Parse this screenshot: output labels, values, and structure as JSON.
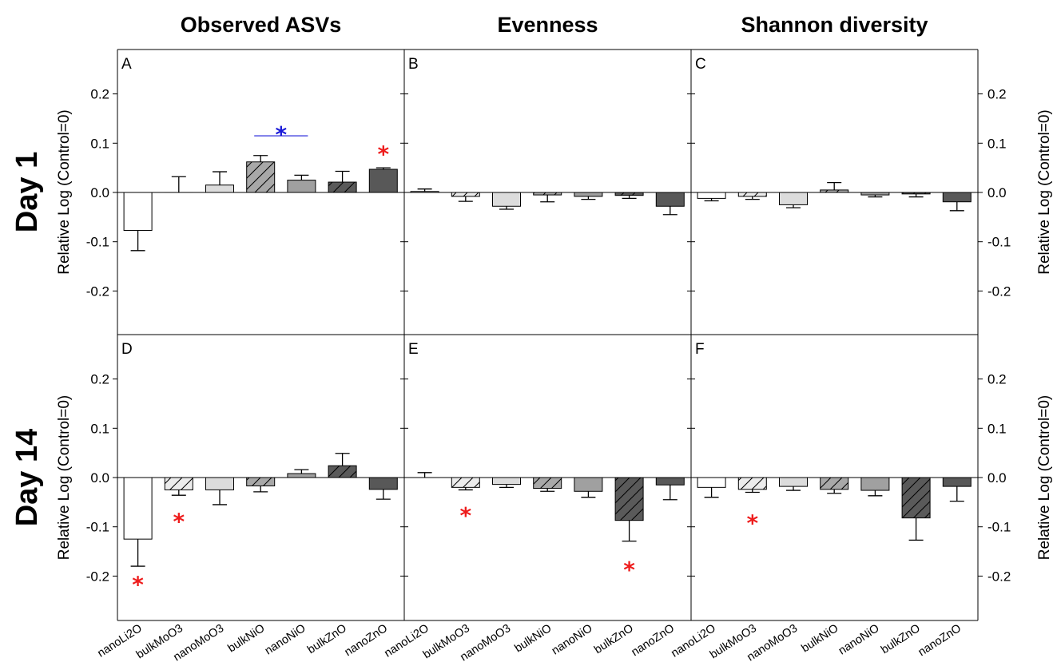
{
  "chart_data": {
    "type": "bar",
    "column_titles": [
      "Observed ASVs",
      "Evenness",
      "Shannon diversity"
    ],
    "row_titles": [
      "Day 1",
      "Day 14"
    ],
    "ylabel": "Relative Log (Control=0)",
    "ylim": [
      -0.29,
      0.29
    ],
    "yticks": [
      0.2,
      0.1,
      0.0,
      -0.1,
      -0.2
    ],
    "ytick_labels": [
      "0.2",
      "0.1",
      "0.0",
      "-0.1",
      "-0.2"
    ],
    "categories": [
      "nanoLi2O",
      "bulkMoO3",
      "nanoMoO3",
      "bulkNiO",
      "nanoNiO",
      "bulkZnO",
      "nanoZnO"
    ],
    "bar_styles": [
      {
        "fill": "#ffffff",
        "hatch": false
      },
      {
        "fill": "#ececec",
        "hatch": true
      },
      {
        "fill": "#dcdcdc",
        "hatch": false
      },
      {
        "fill": "#a8a8a8",
        "hatch": true
      },
      {
        "fill": "#a0a0a0",
        "hatch": false
      },
      {
        "fill": "#5a5a5a",
        "hatch": true
      },
      {
        "fill": "#585858",
        "hatch": false
      }
    ],
    "colors": {
      "significance_red": "#ee1c1c",
      "significance_blue": "#1b1bd8"
    },
    "panels": [
      {
        "letter": "A",
        "row": 0,
        "col": 0,
        "values": [
          -0.077,
          0.0,
          0.015,
          0.062,
          0.025,
          0.021,
          0.047
        ],
        "errors": [
          0.041,
          0.032,
          0.027,
          0.013,
          0.01,
          0.022,
          0.003
        ],
        "stars": [
          {
            "index": 6,
            "y": 0.085,
            "color": "red"
          }
        ],
        "bracket": {
          "from": 3,
          "to": 4,
          "y": 0.115,
          "star_y": 0.125,
          "color": "blue"
        }
      },
      {
        "letter": "B",
        "row": 0,
        "col": 1,
        "values": [
          0.002,
          -0.008,
          -0.028,
          -0.005,
          -0.008,
          -0.006,
          -0.028
        ],
        "errors": [
          0.005,
          0.01,
          0.006,
          0.014,
          0.006,
          0.006,
          0.017
        ],
        "stars": []
      },
      {
        "letter": "C",
        "row": 0,
        "col": 2,
        "values": [
          -0.012,
          -0.008,
          -0.025,
          0.005,
          -0.005,
          -0.003,
          -0.019
        ],
        "errors": [
          0.005,
          0.006,
          0.006,
          0.015,
          0.004,
          0.006,
          0.018
        ],
        "stars": []
      },
      {
        "letter": "D",
        "row": 1,
        "col": 0,
        "values": [
          -0.125,
          -0.025,
          -0.025,
          -0.017,
          0.008,
          0.024,
          -0.024
        ],
        "errors": [
          0.055,
          0.011,
          0.03,
          0.012,
          0.008,
          0.025,
          0.02
        ],
        "stars": [
          {
            "index": 0,
            "y": -0.21,
            "color": "red"
          },
          {
            "index": 1,
            "y": -0.082,
            "color": "red"
          }
        ]
      },
      {
        "letter": "E",
        "row": 1,
        "col": 1,
        "values": [
          0.0,
          -0.02,
          -0.014,
          -0.022,
          -0.028,
          -0.087,
          -0.015
        ],
        "errors": [
          0.01,
          0.005,
          0.006,
          0.006,
          0.012,
          0.042,
          0.03
        ],
        "stars": [
          {
            "index": 1,
            "y": -0.07,
            "color": "red"
          },
          {
            "index": 5,
            "y": -0.18,
            "color": "red"
          }
        ]
      },
      {
        "letter": "F",
        "row": 1,
        "col": 2,
        "values": [
          -0.02,
          -0.024,
          -0.018,
          -0.024,
          -0.026,
          -0.082,
          -0.018
        ],
        "errors": [
          0.02,
          0.006,
          0.008,
          0.008,
          0.011,
          0.045,
          0.03
        ],
        "stars": [
          {
            "index": 1,
            "y": -0.085,
            "color": "red"
          }
        ]
      }
    ]
  }
}
